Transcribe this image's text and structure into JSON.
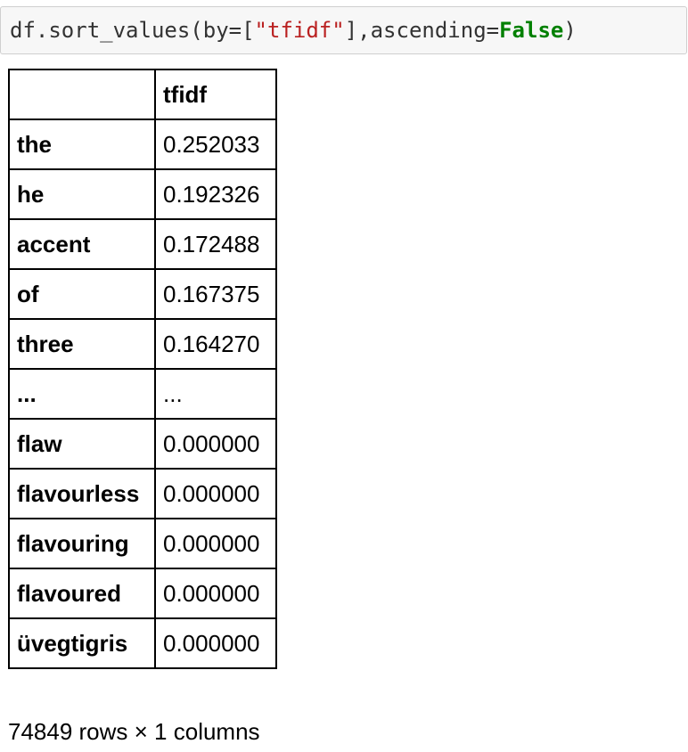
{
  "code_cell": {
    "tokens": {
      "prefix": "df.sort_values(by=[",
      "string": "\"tfidf\"",
      "middle": "],ascending=",
      "keyword": "False",
      "suffix": ")"
    },
    "colors": {
      "string": "#ba2121",
      "keyword": "#008000",
      "background": "#f7f7f7"
    }
  },
  "dataframe": {
    "columns": [
      "tfidf"
    ],
    "rows": [
      {
        "index": "the",
        "value": "0.252033"
      },
      {
        "index": "he",
        "value": "0.192326"
      },
      {
        "index": "accent",
        "value": "0.172488"
      },
      {
        "index": "of",
        "value": "0.167375"
      },
      {
        "index": "three",
        "value": "0.164270"
      },
      {
        "index": "...",
        "value": "..."
      },
      {
        "index": "flaw",
        "value": "0.000000"
      },
      {
        "index": "flavourless",
        "value": "0.000000"
      },
      {
        "index": "flavouring",
        "value": "0.000000"
      },
      {
        "index": "flavoured",
        "value": "0.000000"
      },
      {
        "index": "üvegtigris",
        "value": "0.000000"
      }
    ],
    "shape_text": "74849 rows × 1 columns"
  }
}
